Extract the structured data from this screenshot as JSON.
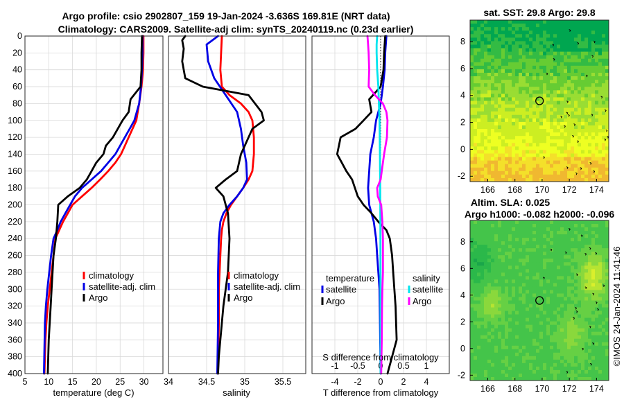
{
  "header": {
    "title_line1": "Argo profile: csio 2902807_159 19-Jan-2024 -3.636S 169.81E (NRT data)",
    "title_line2": "Climatology: CARS2009. Satellite-adj clim: synTS_20240119.nc (0.23d earlier)"
  },
  "colors": {
    "climatology": "#ff0000",
    "satellite": "#0000e6",
    "argo": "#000000",
    "sat_salinity": "#00e5ee",
    "argo_salinity": "#ff00ff"
  },
  "chart_data": [
    {
      "id": "temperature-profile",
      "type": "line",
      "xlabel": "temperature (deg C)",
      "xlim": [
        5,
        34
      ],
      "xticks": [
        5,
        10,
        15,
        20,
        25,
        30
      ],
      "ylim": [
        0,
        400
      ],
      "yticks": [
        0,
        20,
        40,
        60,
        80,
        100,
        120,
        140,
        160,
        180,
        200,
        220,
        240,
        260,
        280,
        300,
        320,
        340,
        360,
        380,
        400
      ],
      "ylabel": "",
      "legend": {
        "placement": "bottom-right",
        "entries": [
          "climatology",
          "satellite-adj. clim",
          "Argo"
        ]
      },
      "series": [
        {
          "name": "climatology",
          "color": "#ff0000",
          "x": [
            29.9,
            29.9,
            29.8,
            29.5,
            29,
            28.4,
            27.6,
            26.8,
            26,
            25.2,
            24,
            22.5,
            20.8,
            19,
            17,
            15,
            14,
            13,
            12.2,
            11.4,
            11,
            10.6,
            10.2,
            9.8,
            9.5,
            9.3,
            9.1
          ],
          "y": [
            0,
            20,
            40,
            60,
            80,
            100,
            110,
            120,
            130,
            140,
            150,
            160,
            170,
            180,
            190,
            200,
            210,
            220,
            230,
            240,
            260,
            280,
            300,
            320,
            340,
            360,
            400
          ]
        },
        {
          "name": "satellite-adj. clim",
          "color": "#0000e6",
          "x": [
            29.7,
            29.7,
            29.6,
            29.4,
            29,
            28,
            27,
            26,
            25,
            24,
            22.5,
            21,
            19,
            17,
            15.5,
            14.5,
            13.5,
            12.5,
            11.8,
            11,
            10.5,
            10.1,
            9.7,
            9.4,
            9.2,
            9
          ],
          "y": [
            0,
            20,
            40,
            60,
            80,
            100,
            110,
            120,
            130,
            140,
            150,
            160,
            170,
            180,
            190,
            200,
            210,
            220,
            230,
            240,
            260,
            280,
            300,
            320,
            340,
            400
          ]
        },
        {
          "name": "Argo",
          "color": "#000000",
          "x": [
            29.6,
            29.5,
            29.5,
            29.3,
            27.2,
            26.8,
            25.5,
            24.5,
            23.5,
            22,
            21.5,
            20,
            19,
            18,
            16.5,
            14,
            12,
            11.8,
            11.5,
            11,
            10.8,
            10.6,
            10.4,
            10.2,
            10,
            9.9,
            9.8
          ],
          "y": [
            0,
            20,
            40,
            60,
            75,
            90,
            100,
            110,
            120,
            130,
            140,
            150,
            160,
            170,
            180,
            190,
            200,
            220,
            240,
            260,
            280,
            300,
            320,
            340,
            360,
            380,
            400
          ]
        }
      ]
    },
    {
      "id": "salinity-profile",
      "type": "line",
      "xlabel": "salinity",
      "xlim": [
        34,
        35.8
      ],
      "xticks": [
        34,
        34.5,
        35,
        35.5
      ],
      "ylim": [
        0,
        400
      ],
      "legend": {
        "placement": "bottom-right",
        "entries": [
          "climatology",
          "satellite-adj. clim",
          "Argo"
        ]
      },
      "series": [
        {
          "name": "climatology",
          "color": "#ff0000",
          "x": [
            34.7,
            34.69,
            34.68,
            34.7,
            34.8,
            34.95,
            35.05,
            35.1,
            35.12,
            35.12,
            35.1,
            35.05,
            34.98,
            34.9,
            34.82,
            34.76,
            34.72,
            34.7,
            34.69,
            34.68,
            34.67,
            34.66,
            34.66,
            34.65
          ],
          "y": [
            0,
            20,
            40,
            60,
            70,
            80,
            90,
            100,
            120,
            140,
            160,
            170,
            180,
            190,
            200,
            210,
            220,
            230,
            240,
            260,
            280,
            300,
            340,
            400
          ]
        },
        {
          "name": "satellite-adj. clim",
          "color": "#0000e6",
          "x": [
            34.65,
            34.5,
            34.52,
            34.6,
            34.75,
            34.9,
            34.95,
            34.98,
            35.02,
            35.03,
            34.98,
            34.9,
            34.8,
            34.72,
            34.68,
            34.66,
            34.65,
            34.65,
            34.64
          ],
          "y": [
            0,
            10,
            30,
            50,
            70,
            90,
            110,
            130,
            150,
            170,
            180,
            190,
            200,
            210,
            220,
            240,
            280,
            340,
            400
          ]
        },
        {
          "name": "Argo",
          "color": "#000000",
          "x": [
            34.22,
            34.18,
            34.2,
            34.18,
            34.22,
            34.45,
            35.05,
            35.22,
            35.25,
            35.1,
            35.0,
            34.95,
            34.9,
            34.75,
            34.62,
            34.72,
            34.78,
            34.8,
            34.78,
            34.75,
            34.72,
            34.7,
            34.68,
            34.66,
            34.65
          ],
          "y": [
            0,
            5,
            15,
            30,
            50,
            60,
            70,
            90,
            100,
            110,
            130,
            140,
            160,
            170,
            180,
            190,
            210,
            240,
            280,
            300,
            320,
            340,
            360,
            380,
            400
          ]
        }
      ]
    },
    {
      "id": "difference-profile",
      "type": "line",
      "xlabel": "T difference from climatology",
      "xlim": [
        -6,
        6
      ],
      "xticks": [
        -4,
        -2,
        0,
        2,
        4
      ],
      "top_axis_label": "S difference from climatology",
      "top_ticks": [
        -1,
        -0.5,
        0,
        0.5,
        1
      ],
      "ylim": [
        0,
        400
      ],
      "legend": {
        "placement": "bottom",
        "group_temperature": "temperature",
        "group_salinity": "salinity",
        "entries": [
          "satellite",
          "Argo",
          "satellite",
          "Argo"
        ]
      },
      "series": [
        {
          "name": "temperature satellite",
          "color": "#0000e6",
          "x": [
            0.5,
            0.4,
            0.35,
            0.2,
            0,
            -0.4,
            -0.6,
            -0.9,
            -1.0,
            -1.1,
            -1.0,
            -0.8,
            -0.6,
            -0.4,
            -0.3,
            -0.2,
            -0.1,
            0
          ],
          "y": [
            0,
            20,
            40,
            60,
            80,
            100,
            120,
            140,
            160,
            180,
            200,
            210,
            220,
            240,
            260,
            280,
            300,
            400
          ]
        },
        {
          "name": "temperature Argo",
          "color": "#000000",
          "x": [
            0.4,
            0.3,
            0.25,
            0,
            -1.0,
            -0.8,
            -1.5,
            -2.2,
            -3.5,
            -3.8,
            -3.4,
            -3.0,
            -2.5,
            -2.0,
            -1.5,
            -0.8,
            -0.2,
            0.5,
            0.8,
            1,
            1.1,
            1.2,
            1.3,
            1.4,
            1.0,
            0.6
          ],
          "y": [
            0,
            20,
            40,
            60,
            75,
            90,
            100,
            110,
            120,
            140,
            150,
            160,
            170,
            190,
            200,
            210,
            220,
            230,
            240,
            260,
            280,
            300,
            320,
            360,
            380,
            400
          ]
        },
        {
          "name": "salinity satellite",
          "color": "#00e5ee",
          "x": [
            -0.3,
            -0.35,
            -0.35,
            -0.3,
            -0.2,
            -0.15,
            -0.1,
            -0.08,
            -0.06,
            -0.05,
            -0.03,
            -0.02,
            -0.01,
            0
          ],
          "y": [
            0,
            10,
            20,
            40,
            60,
            80,
            100,
            120,
            140,
            160,
            200,
            240,
            300,
            400
          ]
        },
        {
          "name": "salinity Argo",
          "color": "#ff00ff",
          "x": [
            -1.15,
            -1.1,
            -1.05,
            -1.0,
            -1.05,
            -0.5,
            0.2,
            0.5,
            0.6,
            0.55,
            0.3,
            0.1,
            0,
            -0.3,
            -0.25,
            0.05,
            0.1,
            0.15,
            0.2,
            0.2,
            0.2,
            0.15,
            0.12,
            0.1,
            0.05
          ],
          "y": [
            0,
            10,
            20,
            40,
            60,
            70,
            80,
            90,
            100,
            120,
            140,
            160,
            170,
            180,
            190,
            200,
            210,
            220,
            240,
            260,
            280,
            300,
            320,
            360,
            400
          ]
        }
      ]
    },
    {
      "id": "sst-map",
      "type": "heatmap",
      "title": "sat. SST: 29.8 Argo: 29.8",
      "xlim": [
        164.7,
        174.9
      ],
      "ylim": [
        -2.4,
        9.6
      ],
      "xticks": [
        166,
        168,
        170,
        172,
        174
      ],
      "yticks": [
        -2,
        0,
        2,
        4,
        6,
        8
      ],
      "marker": {
        "lon": 169.81,
        "lat": 3.6
      },
      "palette": [
        "#00a650",
        "#33bb44",
        "#66cc33",
        "#99dd33",
        "#ccee22",
        "#eeff22",
        "#f4e02a",
        "#f0b830"
      ]
    },
    {
      "id": "sla-map",
      "type": "heatmap",
      "title_line1": "Altim. SLA: 0.025",
      "title_line2": "Argo h1000: -0.082 h2000: -0.096",
      "xlim": [
        164.7,
        174.9
      ],
      "ylim": [
        -2.4,
        9.6
      ],
      "xticks": [
        166,
        168,
        170,
        172,
        174
      ],
      "yticks": [
        -2,
        0,
        2,
        4,
        6,
        8
      ],
      "marker": {
        "lon": 169.81,
        "lat": 3.6
      },
      "palette": [
        "#1aa64a",
        "#2bb84a",
        "#44c44a",
        "#66d044",
        "#8ad83c",
        "#b6e432",
        "#daef2c"
      ]
    }
  ],
  "footer": {
    "timestamp": "©IMOS 24-Jan-2024 11:41:46"
  }
}
